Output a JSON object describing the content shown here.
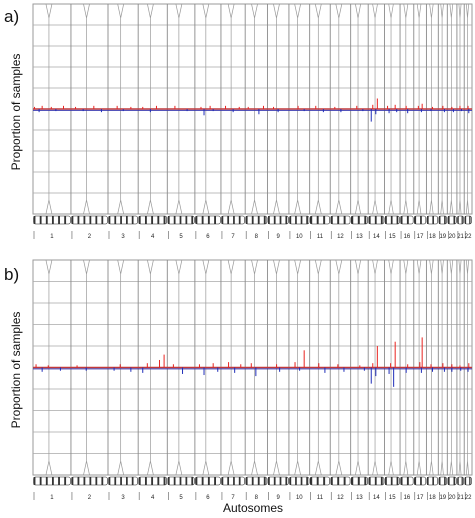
{
  "figure": {
    "xlabel": "Autosomes"
  },
  "chart_data": [
    {
      "type": "bar",
      "panel_label": "a)",
      "ylabel": "Proportion of samples",
      "chromosomes": [
        "1",
        "2",
        "3",
        "4",
        "5",
        "6",
        "7",
        "8",
        "9",
        "10",
        "11",
        "12",
        "13",
        "14",
        "15",
        "16",
        "17",
        "18",
        "19",
        "20",
        "21",
        "22"
      ],
      "chromosome_sizes_mb": [
        249,
        243,
        198,
        191,
        181,
        171,
        159,
        146,
        141,
        136,
        135,
        134,
        115,
        107,
        102,
        90,
        83,
        78,
        59,
        63,
        48,
        51
      ],
      "ylim": [
        -1,
        1
      ],
      "gridlines": 9,
      "grid": true,
      "series": [
        {
          "color": "#e8231f",
          "x": [
            [
              1,
              10
            ],
            [
              1,
              60
            ],
            [
              1,
              120
            ],
            [
              1,
              200
            ],
            [
              2,
              30
            ],
            [
              2,
              150
            ],
            [
              3,
              60
            ],
            [
              3,
              150
            ],
            [
              4,
              30
            ],
            [
              4,
              120
            ],
            [
              5,
              50
            ],
            [
              6,
              40
            ],
            [
              6,
              100
            ],
            [
              7,
              30
            ],
            [
              7,
              120
            ],
            [
              8,
              20
            ],
            [
              8,
              120
            ],
            [
              9,
              40
            ],
            [
              10,
              60
            ],
            [
              11,
              40
            ],
            [
              12,
              30
            ],
            [
              13,
              40
            ],
            [
              14,
              30
            ],
            [
              14,
              60
            ],
            [
              15,
              20
            ],
            [
              15,
              70
            ],
            [
              16,
              40
            ],
            [
              17,
              30
            ],
            [
              17,
              55
            ],
            [
              18,
              40
            ],
            [
              19,
              30
            ],
            [
              20,
              30
            ],
            [
              21,
              20
            ],
            [
              22,
              25
            ]
          ],
          "values": [
            0.02,
            0.03,
            0.02,
            0.03,
            0.02,
            0.03,
            0.03,
            0.02,
            0.02,
            0.03,
            0.03,
            0.02,
            0.03,
            0.03,
            0.02,
            0.02,
            0.03,
            0.02,
            0.03,
            0.03,
            0.02,
            0.03,
            0.04,
            0.1,
            0.03,
            0.04,
            0.03,
            0.03,
            0.05,
            0.02,
            0.03,
            0.02,
            0.03,
            0.03
          ]
        },
        {
          "color": "#1f2db8",
          "x": [
            [
              1,
              40
            ],
            [
              1,
              150
            ],
            [
              2,
              80
            ],
            [
              2,
              200
            ],
            [
              3,
              100
            ],
            [
              4,
              80
            ],
            [
              5,
              130
            ],
            [
              6,
              60
            ],
            [
              6,
              120
            ],
            [
              7,
              80
            ],
            [
              8,
              90
            ],
            [
              9,
              70
            ],
            [
              10,
              100
            ],
            [
              11,
              90
            ],
            [
              12,
              70
            ],
            [
              13,
              80
            ],
            [
              14,
              20
            ],
            [
              14,
              50
            ],
            [
              15,
              30
            ],
            [
              15,
              80
            ],
            [
              16,
              50
            ],
            [
              17,
              50
            ],
            [
              18,
              30
            ],
            [
              19,
              40
            ],
            [
              20,
              40
            ],
            [
              21,
              30
            ],
            [
              22,
              30
            ]
          ],
          "values": [
            -0.03,
            -0.02,
            -0.02,
            -0.03,
            -0.02,
            -0.03,
            -0.02,
            -0.06,
            -0.02,
            -0.03,
            -0.05,
            -0.03,
            -0.02,
            -0.03,
            -0.03,
            -0.02,
            -0.12,
            -0.05,
            -0.04,
            -0.03,
            -0.04,
            -0.03,
            -0.02,
            -0.03,
            -0.03,
            -0.02,
            -0.04
          ]
        }
      ]
    },
    {
      "type": "bar",
      "panel_label": "b)",
      "ylabel": "Proportion of samples",
      "chromosomes": [
        "1",
        "2",
        "3",
        "4",
        "5",
        "6",
        "7",
        "8",
        "9",
        "10",
        "11",
        "12",
        "13",
        "14",
        "15",
        "16",
        "17",
        "18",
        "19",
        "20",
        "21",
        "22"
      ],
      "chromosome_sizes_mb": [
        249,
        243,
        198,
        191,
        181,
        171,
        159,
        146,
        141,
        136,
        135,
        134,
        115,
        107,
        102,
        90,
        83,
        78,
        59,
        63,
        48,
        51
      ],
      "ylim": [
        -1,
        1
      ],
      "gridlines": 9,
      "grid": true,
      "series": [
        {
          "color": "#e8231f",
          "x": [
            [
              1,
              20
            ],
            [
              1,
              100
            ],
            [
              2,
              40
            ],
            [
              3,
              80
            ],
            [
              4,
              60
            ],
            [
              4,
              140
            ],
            [
              4,
              170
            ],
            [
              5,
              40
            ],
            [
              6,
              30
            ],
            [
              6,
              120
            ],
            [
              7,
              50
            ],
            [
              7,
              130
            ],
            [
              8,
              40
            ],
            [
              9,
              60
            ],
            [
              10,
              40
            ],
            [
              10,
              100
            ],
            [
              11,
              60
            ],
            [
              12,
              50
            ],
            [
              13,
              60
            ],
            [
              14,
              30
            ],
            [
              14,
              60
            ],
            [
              15,
              40
            ],
            [
              15,
              70
            ],
            [
              16,
              50
            ],
            [
              17,
              40
            ],
            [
              17,
              55
            ],
            [
              18,
              30
            ],
            [
              19,
              30
            ],
            [
              20,
              30
            ],
            [
              21,
              20
            ],
            [
              22,
              30
            ]
          ],
          "values": [
            0.03,
            0.02,
            0.02,
            0.03,
            0.04,
            0.07,
            0.12,
            0.03,
            0.03,
            0.04,
            0.05,
            0.03,
            0.04,
            0.03,
            0.05,
            0.16,
            0.04,
            0.03,
            0.02,
            0.04,
            0.2,
            0.04,
            0.24,
            0.03,
            0.05,
            0.28,
            0.03,
            0.04,
            0.03,
            0.02,
            0.04
          ]
        },
        {
          "color": "#1f2db8",
          "x": [
            [
              1,
              60
            ],
            [
              1,
              180
            ],
            [
              2,
              100
            ],
            [
              3,
              40
            ],
            [
              3,
              150
            ],
            [
              4,
              30
            ],
            [
              5,
              100
            ],
            [
              6,
              60
            ],
            [
              6,
              150
            ],
            [
              7,
              90
            ],
            [
              8,
              70
            ],
            [
              9,
              80
            ],
            [
              10,
              70
            ],
            [
              11,
              100
            ],
            [
              12,
              90
            ],
            [
              13,
              90
            ],
            [
              14,
              20
            ],
            [
              14,
              50
            ],
            [
              15,
              30
            ],
            [
              15,
              60
            ],
            [
              16,
              40
            ],
            [
              17,
              50
            ],
            [
              18,
              40
            ],
            [
              19,
              40
            ],
            [
              20,
              30
            ],
            [
              21,
              25
            ],
            [
              22,
              25
            ]
          ],
          "values": [
            -0.04,
            -0.03,
            -0.03,
            -0.03,
            -0.04,
            -0.05,
            -0.06,
            -0.07,
            -0.04,
            -0.05,
            -0.08,
            -0.04,
            -0.03,
            -0.05,
            -0.04,
            -0.03,
            -0.15,
            -0.08,
            -0.06,
            -0.18,
            -0.05,
            -0.05,
            -0.04,
            -0.04,
            -0.04,
            -0.03,
            -0.04
          ]
        }
      ]
    }
  ]
}
